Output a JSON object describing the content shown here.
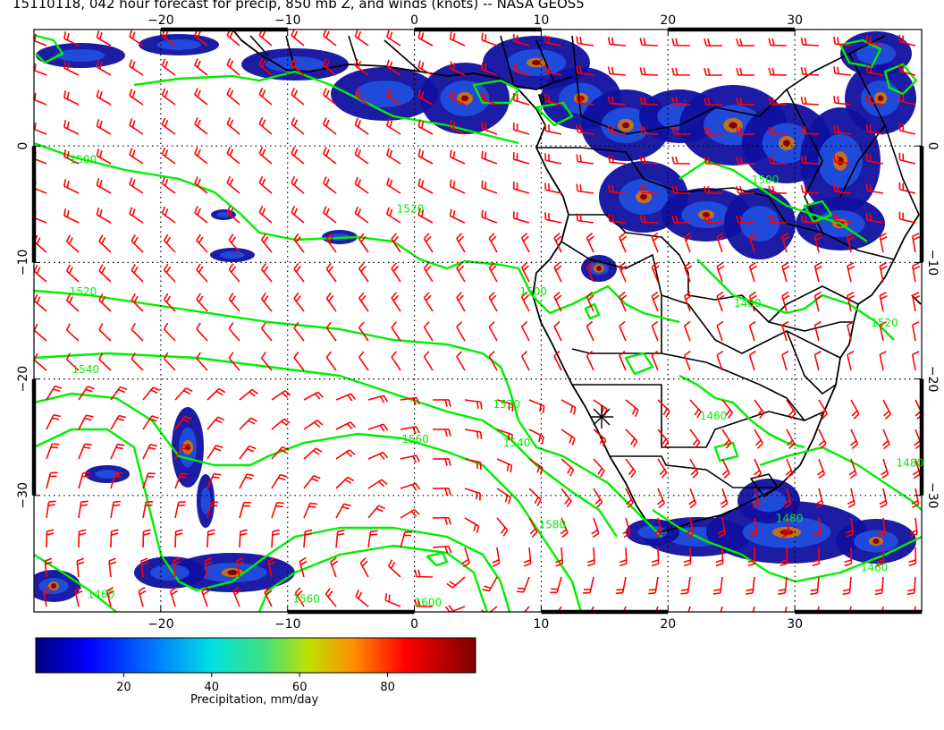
{
  "title": "15110118, 042 hour forecast for precip, 850 mb Z, and winds (knots) -- NASA GEOS5",
  "map": {
    "lon_range": [
      -30,
      40
    ],
    "lat_range": [
      -40,
      10
    ],
    "lon_ticks": [
      {
        "value": -20,
        "label": "−20"
      },
      {
        "value": -10,
        "label": "−10"
      },
      {
        "value": 0,
        "label": "0"
      },
      {
        "value": 10,
        "label": "10"
      },
      {
        "value": 20,
        "label": "20"
      },
      {
        "value": 30,
        "label": "30"
      }
    ],
    "lat_ticks": [
      {
        "value": 0,
        "label": "0"
      },
      {
        "value": -10,
        "label": "−10"
      },
      {
        "value": -20,
        "label": "−20"
      },
      {
        "value": -30,
        "label": "−30"
      }
    ],
    "grid": true,
    "contour_labels": [
      {
        "text": "1500",
        "lon": -27.2,
        "lat": -1.5
      },
      {
        "text": "1520",
        "lon": -27.2,
        "lat": -12.8
      },
      {
        "text": "1540",
        "lon": -27.0,
        "lat": -19.5
      },
      {
        "text": "1520",
        "lon": -1.4,
        "lat": -5.7
      },
      {
        "text": "1500",
        "lon": 8.3,
        "lat": -12.8
      },
      {
        "text": "1520",
        "lon": 6.2,
        "lat": -22.5
      },
      {
        "text": "1540",
        "lon": 7.0,
        "lat": -25.8
      },
      {
        "text": "1560",
        "lon": -1.0,
        "lat": -25.5
      },
      {
        "text": "1580",
        "lon": 9.8,
        "lat": -32.8
      },
      {
        "text": "1600",
        "lon": 0.0,
        "lat": -39.5
      },
      {
        "text": "1560",
        "lon": -9.6,
        "lat": -39.2
      },
      {
        "text": "1460",
        "lon": -25.8,
        "lat": -38.8
      },
      {
        "text": "1460",
        "lon": 22.5,
        "lat": -23.5
      },
      {
        "text": "1480",
        "lon": 25.2,
        "lat": -13.8
      },
      {
        "text": "1500",
        "lon": 26.6,
        "lat": -3.2
      },
      {
        "text": "1520",
        "lon": 36.0,
        "lat": -15.5
      },
      {
        "text": "1460",
        "lon": 35.2,
        "lat": -36.5
      },
      {
        "text": "1480",
        "lon": 38.0,
        "lat": -27.5
      },
      {
        "text": "1480",
        "lon": 28.5,
        "lat": -32.3
      }
    ]
  },
  "colorbar": {
    "ticks": [
      {
        "value": 20,
        "label": "20"
      },
      {
        "value": 40,
        "label": "40"
      },
      {
        "value": 60,
        "label": "60"
      },
      {
        "value": 80,
        "label": "80"
      }
    ],
    "range": [
      0,
      100
    ],
    "title": "Precipitation, mm/day"
  },
  "colors": {
    "wind_barbs": "#ff0000",
    "contours": "#00ee00",
    "coastlines": "#000000",
    "precip_low": "#000080",
    "precip_high": "#800000"
  }
}
